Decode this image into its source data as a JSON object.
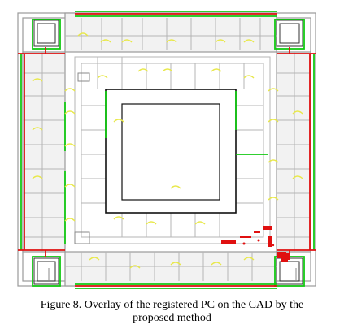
{
  "figure": {
    "caption_line1": "Figure 8. Overlay of the registered PC on the CAD by the",
    "caption_line2": "proposed method",
    "colors": {
      "background": "#ffffff",
      "cad_wall": "#9a9a9a",
      "cad_dark": "#222222",
      "pc_green": "#12c812",
      "pc_red": "#e01010",
      "pc_yellow": "#e8e84a",
      "room_fill": "#f2f2f2"
    }
  }
}
